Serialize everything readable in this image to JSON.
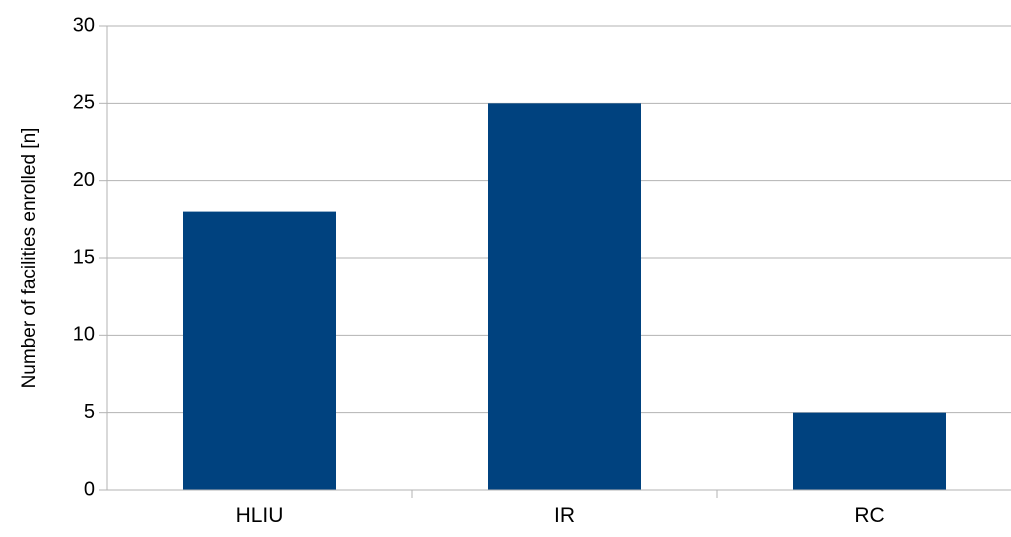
{
  "chart_data": {
    "type": "bar",
    "title": "",
    "xlabel": "",
    "ylabel": "Number of facilities enrolled [n]",
    "categories": [
      "HLIU",
      "IR",
      "RC"
    ],
    "values": [
      18,
      25,
      5
    ],
    "ylim": [
      0,
      30
    ],
    "yticks": [
      0,
      5,
      10,
      15,
      20,
      25,
      30
    ],
    "grid": true,
    "legend": "none",
    "bar_color": "#00427f",
    "grid_color": "#b3b3b3"
  }
}
